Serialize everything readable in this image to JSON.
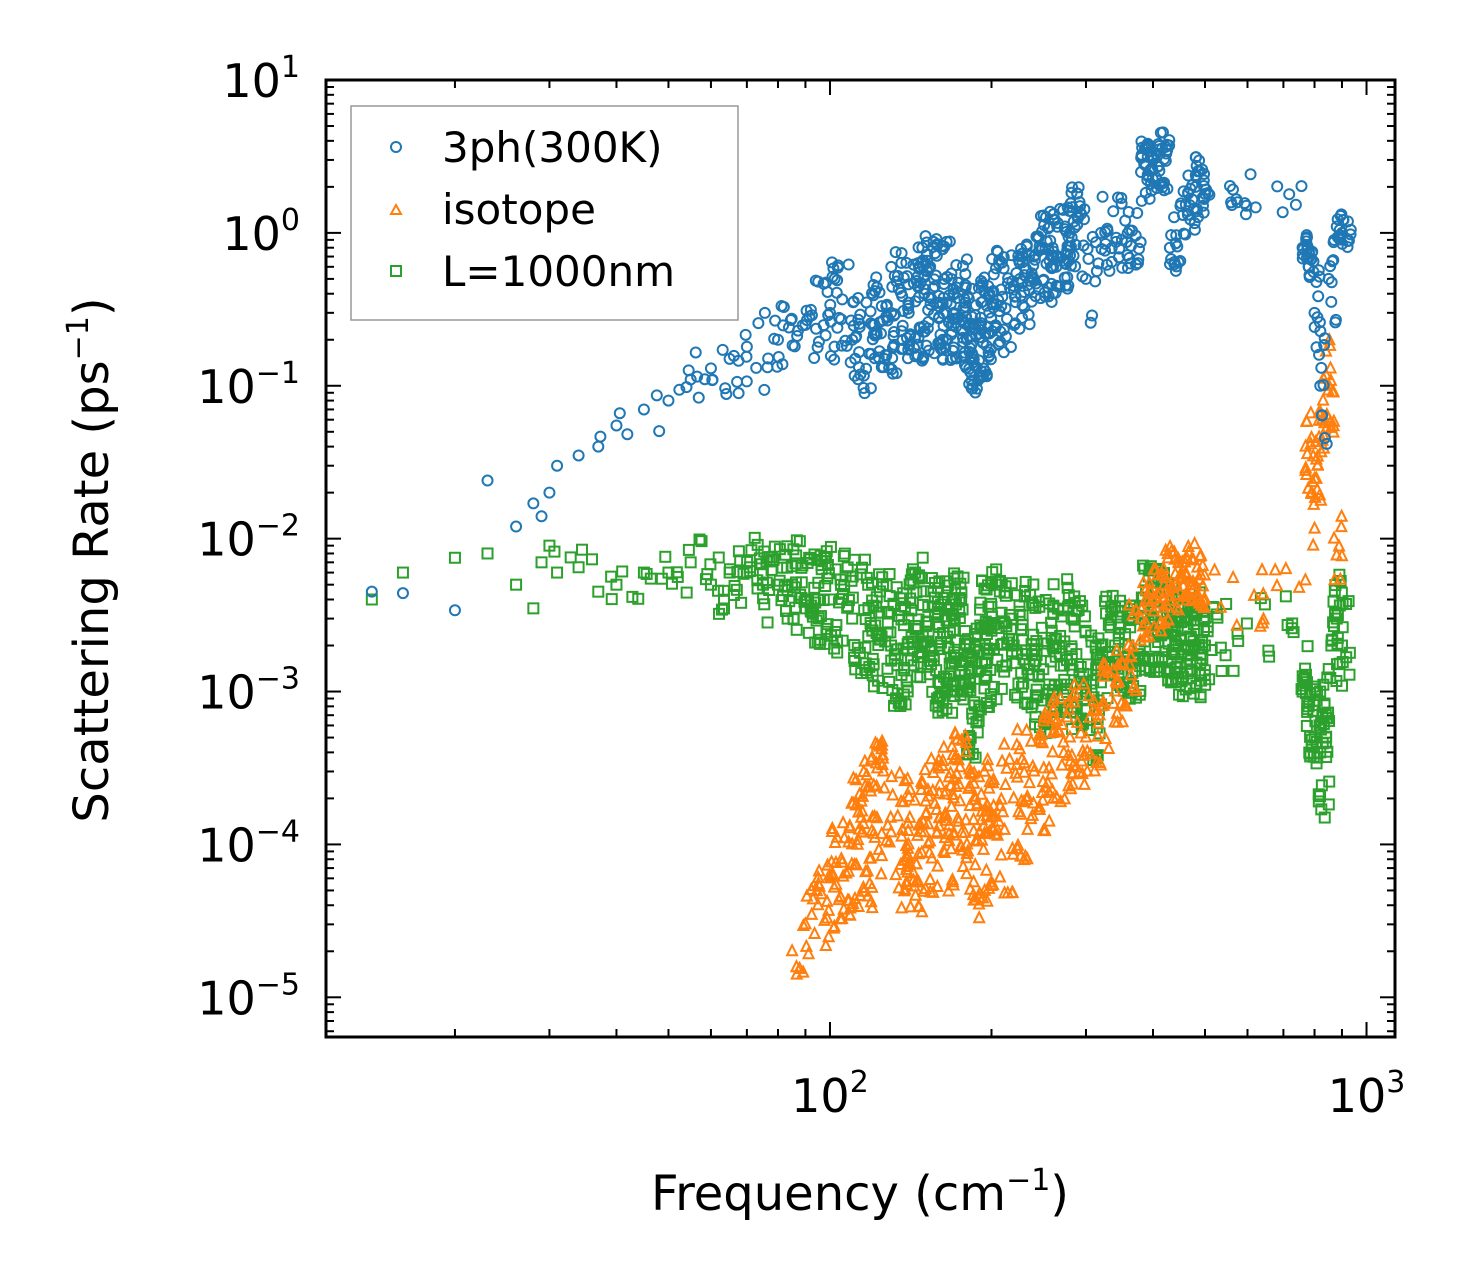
{
  "chart_data": {
    "type": "scatter",
    "xscale": "log",
    "yscale": "log",
    "xlim": [
      11.5,
      1130
    ],
    "ylim": [
      5.5e-06,
      10
    ],
    "xlabel": {
      "text": "Frequency (cm",
      "sup": "−1",
      "close": ")"
    },
    "ylabel": {
      "text": "Scattering Rate (ps",
      "sup": "−1",
      "close": ")"
    },
    "x_ticks": [
      {
        "value": 100,
        "base": "10",
        "exp": "2"
      },
      {
        "value": 1000,
        "base": "10",
        "exp": "3"
      }
    ],
    "y_ticks": [
      {
        "value": 10,
        "base": "10",
        "exp": "1"
      },
      {
        "value": 1,
        "base": "10",
        "exp": "0"
      },
      {
        "value": 0.1,
        "base": "10",
        "exp": "−1"
      },
      {
        "value": 0.01,
        "base": "10",
        "exp": "−2"
      },
      {
        "value": 0.001,
        "base": "10",
        "exp": "−3"
      },
      {
        "value": 0.0001,
        "base": "10",
        "exp": "−4"
      },
      {
        "value": 1e-05,
        "base": "10",
        "exp": "−5"
      }
    ],
    "legend_position": "top-left",
    "series": [
      {
        "name": "3ph(300K)",
        "marker": "circle",
        "color": "#1f77b4",
        "x": [
          14,
          16,
          20,
          23,
          26,
          28,
          29,
          30,
          31,
          34,
          37,
          40,
          45,
          50,
          55,
          60,
          65,
          70,
          80,
          90,
          100,
          110,
          120,
          130,
          140,
          150,
          160,
          170,
          180,
          190,
          200,
          220,
          240,
          260,
          280,
          300,
          320,
          350,
          380,
          400,
          430,
          450,
          480,
          500,
          760,
          780,
          800,
          820,
          850,
          880,
          900
        ],
        "y": [
          0.0045,
          0.0044,
          0.0034,
          0.024,
          0.012,
          0.017,
          0.014,
          0.02,
          0.03,
          0.035,
          0.04,
          0.055,
          0.07,
          0.08,
          0.11,
          0.13,
          0.15,
          0.18,
          0.2,
          0.25,
          0.3,
          0.2,
          0.25,
          0.3,
          0.35,
          0.4,
          0.35,
          0.3,
          0.2,
          0.25,
          0.35,
          0.45,
          0.7,
          0.8,
          1.0,
          0.5,
          1.0,
          0.9,
          2.5,
          3.0,
          0.8,
          1.5,
          2.0,
          1.8,
          0.8,
          0.6,
          0.3,
          0.1,
          0.5,
          1.1,
          1.0
        ],
        "spread": [
          0,
          0,
          0,
          0,
          0,
          0,
          0,
          0,
          0,
          0,
          0.1,
          0.1,
          0.15,
          0.2,
          0.2,
          0.2,
          0.25,
          0.3,
          0.3,
          0.3,
          0.35,
          0.35,
          0.35,
          0.4,
          0.4,
          0.4,
          0.4,
          0.4,
          0.35,
          0.35,
          0.35,
          0.3,
          0.3,
          0.3,
          0.3,
          0.3,
          0.25,
          0.2,
          0.2,
          0.2,
          0.2,
          0.2,
          0.2,
          0.15,
          0.1,
          0.1,
          0.3,
          0.4,
          0.3,
          0.1,
          0.1
        ],
        "density": [
          1,
          1,
          1,
          1,
          1,
          1,
          1,
          1,
          1,
          1,
          2,
          3,
          3,
          4,
          5,
          6,
          8,
          10,
          14,
          18,
          24,
          28,
          32,
          36,
          40,
          40,
          40,
          40,
          40,
          40,
          40,
          40,
          40,
          40,
          30,
          10,
          20,
          20,
          30,
          30,
          15,
          20,
          20,
          20,
          12,
          12,
          10,
          10,
          10,
          12,
          10
        ]
      },
      {
        "name": "isotope",
        "marker": "triangle",
        "color": "#ff7f0e",
        "x": [
          85,
          90,
          95,
          100,
          105,
          110,
          115,
          120,
          130,
          140,
          150,
          160,
          170,
          180,
          190,
          200,
          220,
          240,
          260,
          280,
          300,
          320,
          340,
          360,
          380,
          400,
          420,
          440,
          460,
          480,
          500,
          770,
          790,
          810,
          830,
          850,
          870
        ],
        "y": [
          2e-05,
          3e-05,
          4e-05,
          6e-05,
          8e-05,
          0.0001,
          0.00012,
          0.00015,
          0.00012,
          0.0001,
          0.00012,
          0.00015,
          0.0002,
          0.0001,
          0.00012,
          0.00015,
          0.0002,
          0.0003,
          0.0004,
          0.0005,
          0.0005,
          0.0008,
          0.001,
          0.002,
          0.003,
          0.004,
          0.005,
          0.005,
          0.006,
          0.005,
          0.004,
          0.04,
          0.02,
          0.03,
          0.08,
          0.1,
          0.01
        ],
        "spread": [
          0.2,
          0.25,
          0.3,
          0.35,
          0.4,
          0.45,
          0.5,
          0.5,
          0.5,
          0.5,
          0.5,
          0.5,
          0.5,
          0.5,
          0.5,
          0.5,
          0.45,
          0.4,
          0.4,
          0.35,
          0.3,
          0.3,
          0.3,
          0.3,
          0.25,
          0.25,
          0.25,
          0.2,
          0.2,
          0.2,
          0.2,
          0.35,
          0.35,
          0.35,
          0.35,
          0.35,
          0.3
        ],
        "density": [
          6,
          10,
          14,
          18,
          20,
          22,
          24,
          28,
          30,
          30,
          30,
          30,
          30,
          30,
          30,
          30,
          30,
          28,
          26,
          22,
          16,
          14,
          14,
          14,
          16,
          18,
          18,
          18,
          18,
          18,
          16,
          12,
          12,
          12,
          12,
          12,
          8
        ]
      },
      {
        "name": "L=1000nm",
        "marker": "square",
        "color": "#2ca02c",
        "x": [
          14,
          16,
          20,
          23,
          26,
          28,
          29,
          30,
          31,
          34,
          37,
          40,
          45,
          50,
          55,
          60,
          65,
          70,
          75,
          80,
          85,
          90,
          95,
          100,
          110,
          120,
          130,
          140,
          150,
          160,
          170,
          180,
          190,
          200,
          220,
          240,
          260,
          280,
          300,
          320,
          340,
          360,
          380,
          400,
          420,
          440,
          460,
          480,
          500,
          760,
          780,
          800,
          820,
          840,
          860,
          880,
          900
        ],
        "y": [
          0.004,
          0.006,
          0.0075,
          0.008,
          0.005,
          0.0035,
          0.007,
          0.009,
          0.006,
          0.0065,
          0.0045,
          0.005,
          0.006,
          0.006,
          0.007,
          0.005,
          0.006,
          0.006,
          0.005,
          0.005,
          0.005,
          0.004,
          0.004,
          0.004,
          0.003,
          0.0025,
          0.002,
          0.003,
          0.002,
          0.002,
          0.0025,
          0.001,
          0.002,
          0.0025,
          0.002,
          0.0015,
          0.002,
          0.0015,
          0.001,
          0.002,
          0.002,
          0.002,
          0.003,
          0.003,
          0.0025,
          0.002,
          0.002,
          0.002,
          0.002,
          0.001,
          0.0008,
          0.0005,
          0.0004,
          0.0005,
          0.002,
          0.003,
          0.002
        ],
        "spread": [
          0,
          0,
          0.05,
          0.05,
          0.1,
          0.1,
          0.1,
          0.1,
          0.1,
          0.15,
          0.15,
          0.15,
          0.15,
          0.2,
          0.2,
          0.2,
          0.2,
          0.25,
          0.25,
          0.3,
          0.3,
          0.3,
          0.35,
          0.35,
          0.4,
          0.4,
          0.4,
          0.4,
          0.45,
          0.45,
          0.45,
          0.45,
          0.45,
          0.45,
          0.45,
          0.45,
          0.45,
          0.45,
          0.45,
          0.4,
          0.35,
          0.35,
          0.35,
          0.35,
          0.35,
          0.35,
          0.35,
          0.35,
          0.35,
          0.4,
          0.4,
          0.45,
          0.45,
          0.45,
          0.4,
          0.3,
          0.3
        ],
        "density": [
          1,
          1,
          1,
          1,
          1,
          1,
          1,
          2,
          2,
          3,
          3,
          4,
          5,
          6,
          6,
          8,
          10,
          12,
          14,
          16,
          18,
          20,
          22,
          24,
          30,
          34,
          36,
          38,
          40,
          40,
          40,
          40,
          40,
          40,
          40,
          40,
          40,
          40,
          30,
          26,
          26,
          26,
          28,
          30,
          30,
          30,
          30,
          30,
          28,
          14,
          14,
          14,
          14,
          14,
          12,
          10,
          10
        ]
      }
    ]
  }
}
